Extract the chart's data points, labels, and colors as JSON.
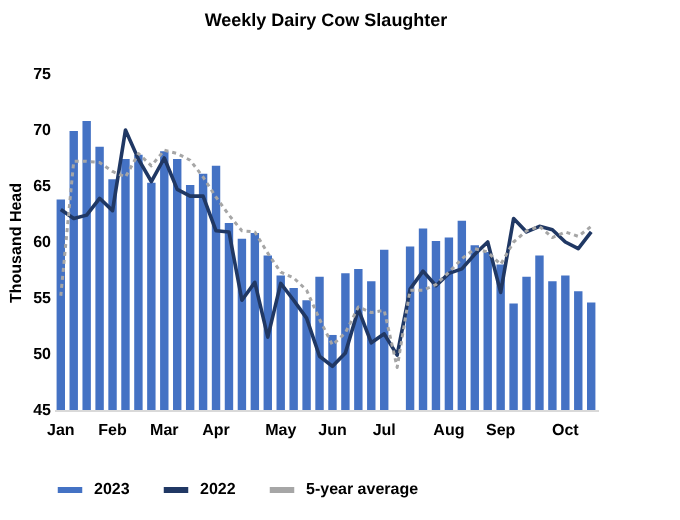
{
  "chart_data": {
    "type": "bar",
    "title": "Weekly Dairy Cow Slaughter",
    "ylabel": "Thousand Head",
    "categories": [
      "Jan",
      null,
      null,
      null,
      "Feb",
      null,
      null,
      null,
      "Mar",
      null,
      null,
      null,
      "Apr",
      null,
      null,
      null,
      null,
      "May",
      null,
      null,
      null,
      "Jun",
      null,
      null,
      null,
      "Jul",
      null,
      null,
      null,
      null,
      "Aug",
      null,
      null,
      null,
      "Sep",
      null,
      null,
      null,
      null,
      "Oct",
      null,
      null
    ],
    "series": [
      {
        "name": "2023",
        "color": "#4472c4",
        "values": [
          63.8,
          69.9,
          70.8,
          68.5,
          65.6,
          67.4,
          67.8,
          65.3,
          68.1,
          67.4,
          65.1,
          66.1,
          66.8,
          61.7,
          60.3,
          60.8,
          58.8,
          57.0,
          55.9,
          54.8,
          56.9,
          51.7,
          57.2,
          57.6,
          56.5,
          59.3,
          null,
          59.6,
          61.2,
          60.1,
          60.4,
          61.9,
          59.7,
          59.1,
          58.0,
          54.5,
          56.9,
          58.8,
          56.5,
          57.0,
          55.6,
          54.6
        ]
      },
      {
        "name": "2022",
        "type": "line",
        "line_style": "solid",
        "color": "#203864",
        "values": [
          62.9,
          62.1,
          62.4,
          63.9,
          62.8,
          70.0,
          67.4,
          65.4,
          67.5,
          64.7,
          64.1,
          64.1,
          61.0,
          60.9,
          54.8,
          56.4,
          51.5,
          56.3,
          54.8,
          53.2,
          49.8,
          48.9,
          50.1,
          54.0,
          51.0,
          51.8,
          49.9,
          55.8,
          57.4,
          56.1,
          57.2,
          57.6,
          58.9,
          60.0,
          55.5,
          62.1,
          60.9,
          61.4,
          61.1,
          60.0,
          59.4,
          60.9
        ]
      },
      {
        "name": "5-year average",
        "type": "line",
        "line_style": "dotted",
        "color": "#a6a6a6",
        "values": [
          55.2,
          67.2,
          67.2,
          67.1,
          66.3,
          65.8,
          67.9,
          66.8,
          68.2,
          67.9,
          67.3,
          65.8,
          64.0,
          62.4,
          61.0,
          60.9,
          59.0,
          57.3,
          56.8,
          55.7,
          53.1,
          50.8,
          51.9,
          54.2,
          53.7,
          53.9,
          48.8,
          55.7,
          55.7,
          56.2,
          57.3,
          58.5,
          59.4,
          59.1,
          58.0,
          60.0,
          61.0,
          61.4,
          60.4,
          60.9,
          60.5,
          61.4
        ]
      }
    ],
    "ylim": [
      45,
      75
    ],
    "yticks": [
      45,
      50,
      55,
      60,
      65,
      70,
      75
    ],
    "grid": false,
    "legend": "bottom"
  }
}
